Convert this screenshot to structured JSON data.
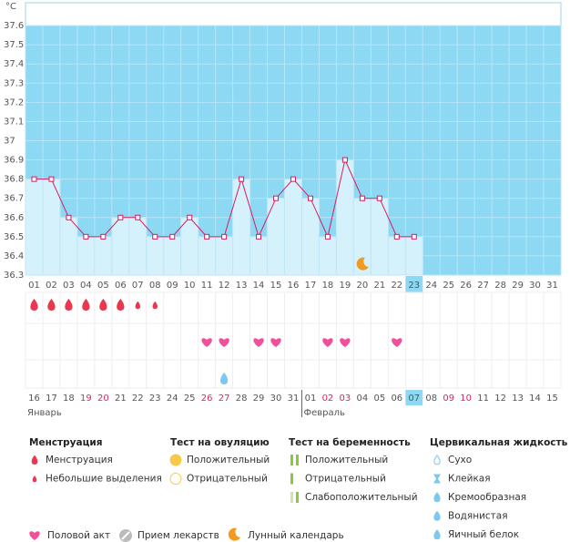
{
  "chart_data": {
    "type": "line",
    "y_label": "°C",
    "categories": [
      "01",
      "02",
      "03",
      "04",
      "05",
      "06",
      "07",
      "08",
      "09",
      "10",
      "11",
      "12",
      "13",
      "14",
      "15",
      "16",
      "17",
      "18",
      "19",
      "20",
      "21",
      "22",
      "23",
      "24",
      "25",
      "26",
      "27",
      "28",
      "29",
      "30",
      "31"
    ],
    "series": [
      {
        "color": "#d81b60",
        "values": [
          36.8,
          36.8,
          36.6,
          36.5,
          36.5,
          36.6,
          36.6,
          36.5,
          36.5,
          36.6,
          36.5,
          36.5,
          36.8,
          36.5,
          36.7,
          36.8,
          36.7,
          36.5,
          36.9,
          36.7,
          36.7,
          36.5,
          36.5,
          null,
          null,
          null,
          null,
          null,
          null,
          null,
          null
        ]
      }
    ],
    "ylim": [
      36.3,
      37.7
    ],
    "yticks": [
      36.3,
      36.4,
      36.5,
      36.6,
      36.7,
      36.8,
      36.9,
      37,
      37.1,
      37.2,
      37.3,
      37.4,
      37.5,
      37.6
    ],
    "today_index": 22,
    "moon_days": [
      19
    ],
    "menstruation_days": [
      0,
      1,
      2,
      3,
      4,
      5
    ],
    "light_bleeding_days": [
      6,
      7
    ],
    "intercourse_days": [
      10,
      11,
      13,
      14,
      17,
      18,
      21
    ],
    "egg_white_days": [
      11
    ],
    "dates": [
      "16",
      "17",
      "18",
      "19",
      "20",
      "21",
      "22",
      "23",
      "24",
      "25",
      "26",
      "27",
      "28",
      "29",
      "30",
      "31",
      "01",
      "02",
      "03",
      "04",
      "05",
      "06",
      "07",
      "08",
      "09",
      "10",
      "11",
      "12",
      "13",
      "14",
      "15"
    ],
    "weekend_dates": [
      3,
      4,
      10,
      11,
      17,
      18,
      24,
      25
    ],
    "months": [
      {
        "label": "Январь",
        "start": 0
      },
      {
        "label": "Февраль",
        "start": 16
      }
    ]
  },
  "legend": [
    {
      "title": "Менструация",
      "items": [
        "Менструация",
        "Небольшие выделения"
      ]
    },
    {
      "title": "Тест на овуляцию",
      "items": [
        "Положительный",
        "Отрицательный"
      ]
    },
    {
      "title": "Тест на беременность",
      "items": [
        "Положительный",
        "Отрицательный",
        "Слабоположительный"
      ]
    },
    {
      "title": "Цервикальная жидкость",
      "items": [
        "Сухо",
        "Клейкая",
        "Кремообразная",
        "Водянистая",
        "Яичный белок"
      ]
    }
  ],
  "legend_extra": [
    "Половой акт",
    "Прием лекарств",
    "Лунный календарь"
  ]
}
